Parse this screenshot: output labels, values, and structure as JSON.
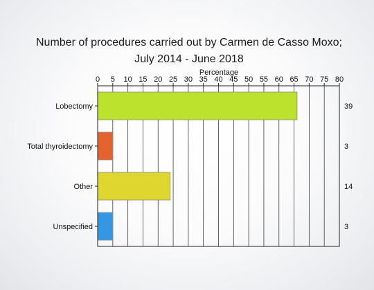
{
  "chart_data": {
    "type": "bar",
    "orientation": "horizontal",
    "title_lines": [
      "Number of procedures carried out by Carmen de Casso Moxo;",
      "July 2014 - June 2018"
    ],
    "xlabel": "Percentage",
    "xlim": [
      0,
      80
    ],
    "xticks": [
      0,
      5,
      10,
      15,
      20,
      25,
      30,
      35,
      40,
      45,
      50,
      55,
      60,
      65,
      70,
      75,
      80
    ],
    "grid": true,
    "categories": [
      "Lobectomy",
      "Total thyroidectomy",
      "Other",
      "Unspecified"
    ],
    "values": [
      66,
      5,
      24,
      5
    ],
    "counts": [
      "39",
      "3",
      "14",
      "3"
    ],
    "colors": [
      "#bce22e",
      "#e4622d",
      "#dfd62e",
      "#3597e3"
    ]
  }
}
